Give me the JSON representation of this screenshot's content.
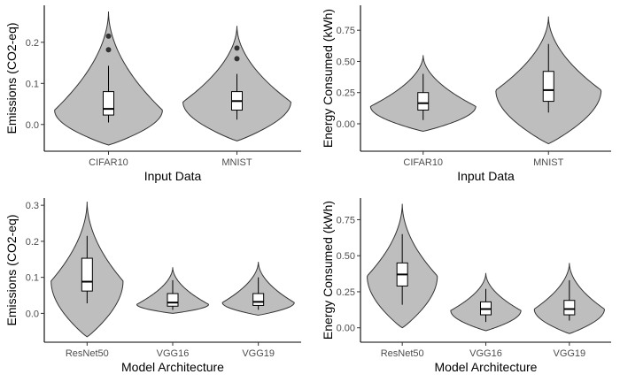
{
  "figure": {
    "background": "#ffffff",
    "violin_fill": "#bebebe",
    "violin_stroke": "#333333",
    "box_fill": "#ffffff",
    "outlier_color": "#333333"
  },
  "chart_data": [
    {
      "type": "violin",
      "xlabel": "Input Data",
      "ylabel": "Emissions (CO2-eq)",
      "ylim": [
        -0.065,
        0.29
      ],
      "yticks": [
        0.0,
        0.1,
        0.2
      ],
      "ytick_labels": [
        "0.0",
        "0.1",
        "0.2"
      ],
      "categories": [
        "CIFAR10",
        "MNIST"
      ],
      "groups": [
        {
          "label": "CIFAR10",
          "density_min": -0.05,
          "density_max": 0.275,
          "mode": 0.035,
          "q1": 0.023,
          "median": 0.038,
          "q3": 0.08,
          "whisker_low": 0.005,
          "whisker_high": 0.143,
          "outliers": [
            0.182,
            0.215
          ]
        },
        {
          "label": "MNIST",
          "density_min": -0.04,
          "density_max": 0.24,
          "mode": 0.055,
          "q1": 0.035,
          "median": 0.057,
          "q3": 0.08,
          "whisker_low": 0.012,
          "whisker_high": 0.123,
          "outliers": [
            0.16,
            0.186
          ]
        }
      ]
    },
    {
      "type": "violin",
      "xlabel": "Input Data",
      "ylabel": "Energy Consumed (kWh)",
      "ylim": [
        -0.22,
        0.95
      ],
      "yticks": [
        0.0,
        0.25,
        0.5,
        0.75
      ],
      "ytick_labels": [
        "0.00",
        "0.25",
        "0.50",
        "0.75"
      ],
      "categories": [
        "CIFAR10",
        "MNIST"
      ],
      "groups": [
        {
          "label": "CIFAR10",
          "density_min": -0.06,
          "density_max": 0.55,
          "mode": 0.14,
          "q1": 0.11,
          "median": 0.165,
          "q3": 0.25,
          "whisker_low": 0.03,
          "whisker_high": 0.4,
          "outliers": []
        },
        {
          "label": "MNIST",
          "density_min": -0.16,
          "density_max": 0.86,
          "mode": 0.27,
          "q1": 0.18,
          "median": 0.27,
          "q3": 0.42,
          "whisker_low": 0.09,
          "whisker_high": 0.64,
          "outliers": []
        }
      ]
    },
    {
      "type": "violin",
      "xlabel": "Model Architecture",
      "ylabel": "Emissions (CO2-eq)",
      "ylim": [
        -0.08,
        0.32
      ],
      "yticks": [
        0.0,
        0.1,
        0.2,
        0.3
      ],
      "ytick_labels": [
        "0.0",
        "0.1",
        "0.2",
        "0.3"
      ],
      "categories": [
        "ResNet50",
        "VGG16",
        "VGG19"
      ],
      "groups": [
        {
          "label": "ResNet50",
          "density_min": -0.065,
          "density_max": 0.31,
          "mode": 0.09,
          "q1": 0.062,
          "median": 0.088,
          "q3": 0.153,
          "whisker_low": 0.028,
          "whisker_high": 0.215,
          "outliers": []
        },
        {
          "label": "VGG16",
          "density_min": 0.0,
          "density_max": 0.128,
          "mode": 0.025,
          "q1": 0.02,
          "median": 0.03,
          "q3": 0.055,
          "whisker_low": 0.01,
          "whisker_high": 0.092,
          "outliers": []
        },
        {
          "label": "VGG19",
          "density_min": -0.005,
          "density_max": 0.143,
          "mode": 0.03,
          "q1": 0.022,
          "median": 0.032,
          "q3": 0.055,
          "whisker_low": 0.01,
          "whisker_high": 0.1,
          "outliers": []
        }
      ]
    },
    {
      "type": "violin",
      "xlabel": "Model Architecture",
      "ylabel": "Energy Consumed (kWh)",
      "ylim": [
        -0.1,
        0.9
      ],
      "yticks": [
        0.0,
        0.25,
        0.5,
        0.75
      ],
      "ytick_labels": [
        "0.00",
        "0.25",
        "0.50",
        "0.75"
      ],
      "categories": [
        "ResNet50",
        "VGG16",
        "VGG19"
      ],
      "groups": [
        {
          "label": "ResNet50",
          "density_min": 0.0,
          "density_max": 0.86,
          "mode": 0.36,
          "q1": 0.29,
          "median": 0.37,
          "q3": 0.45,
          "whisker_low": 0.16,
          "whisker_high": 0.65,
          "outliers": []
        },
        {
          "label": "VGG16",
          "density_min": -0.02,
          "density_max": 0.38,
          "mode": 0.12,
          "q1": 0.09,
          "median": 0.13,
          "q3": 0.18,
          "whisker_low": 0.04,
          "whisker_high": 0.27,
          "outliers": []
        },
        {
          "label": "VGG19",
          "density_min": -0.04,
          "density_max": 0.45,
          "mode": 0.13,
          "q1": 0.09,
          "median": 0.13,
          "q3": 0.19,
          "whisker_low": 0.05,
          "whisker_high": 0.33,
          "outliers": []
        }
      ]
    }
  ]
}
